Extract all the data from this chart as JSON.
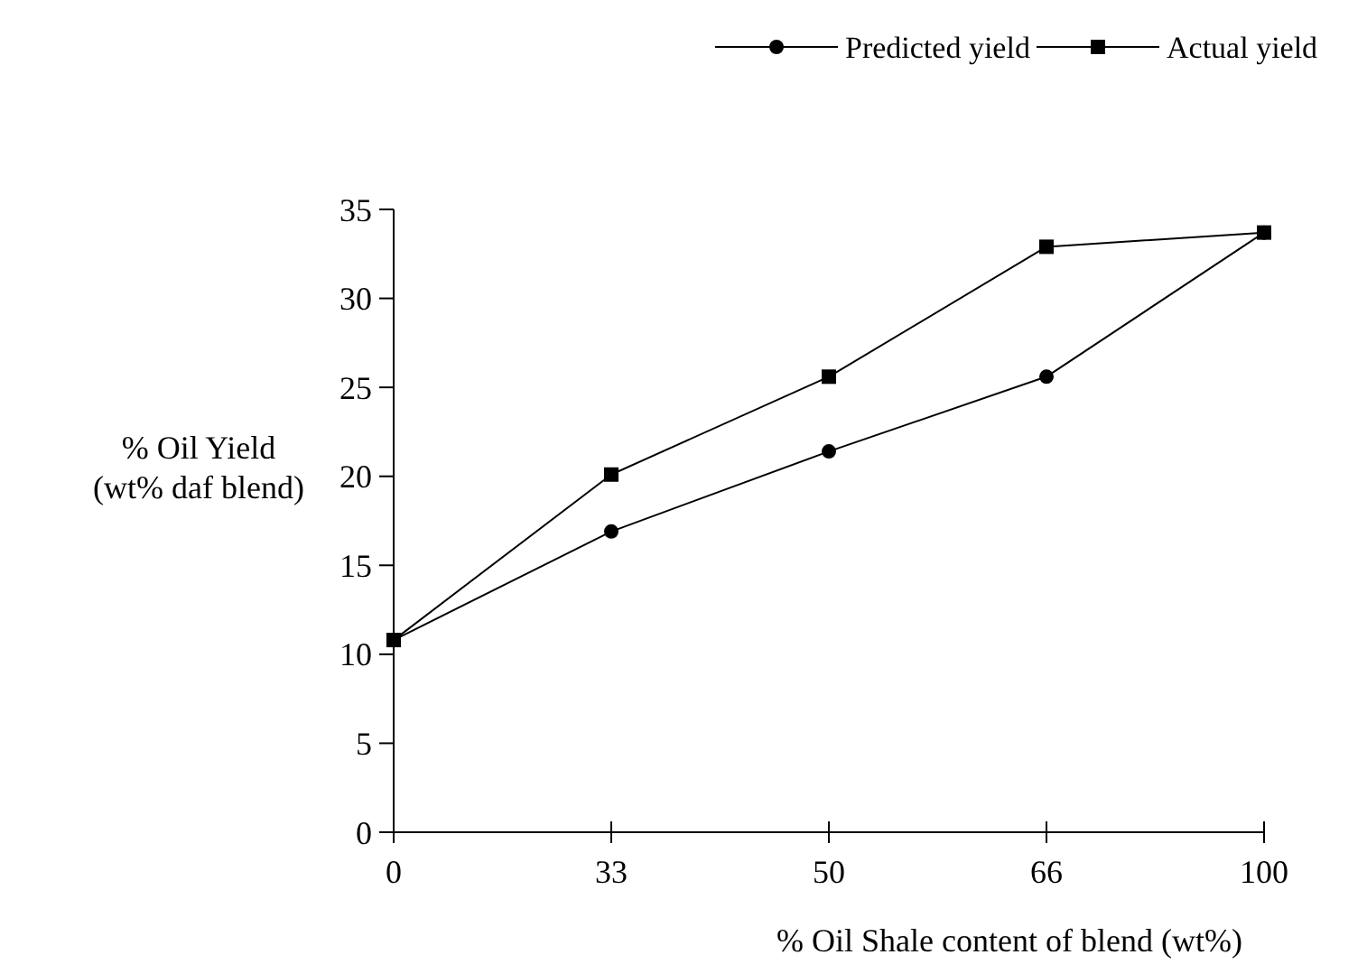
{
  "chart_data": {
    "type": "line",
    "xlabel": "% Oil Shale content of blend (wt%)",
    "ylabel": "% Oil Yield\n(wt% daf blend)",
    "categories": [
      "0",
      "33",
      "50",
      "66",
      "100"
    ],
    "ylim": [
      0,
      35
    ],
    "yticks": [
      0,
      5,
      10,
      15,
      20,
      25,
      30,
      35
    ],
    "legend": "top right",
    "grid": false,
    "series": [
      {
        "name": "Predicted yield",
        "color": "#000000",
        "marker": "circle",
        "values": [
          10.8,
          16.9,
          21.4,
          25.6,
          33.7
        ]
      },
      {
        "name": "Actual yield",
        "color": "#000000",
        "marker": "square",
        "values": [
          10.8,
          20.1,
          25.6,
          32.9,
          33.7
        ]
      }
    ]
  }
}
